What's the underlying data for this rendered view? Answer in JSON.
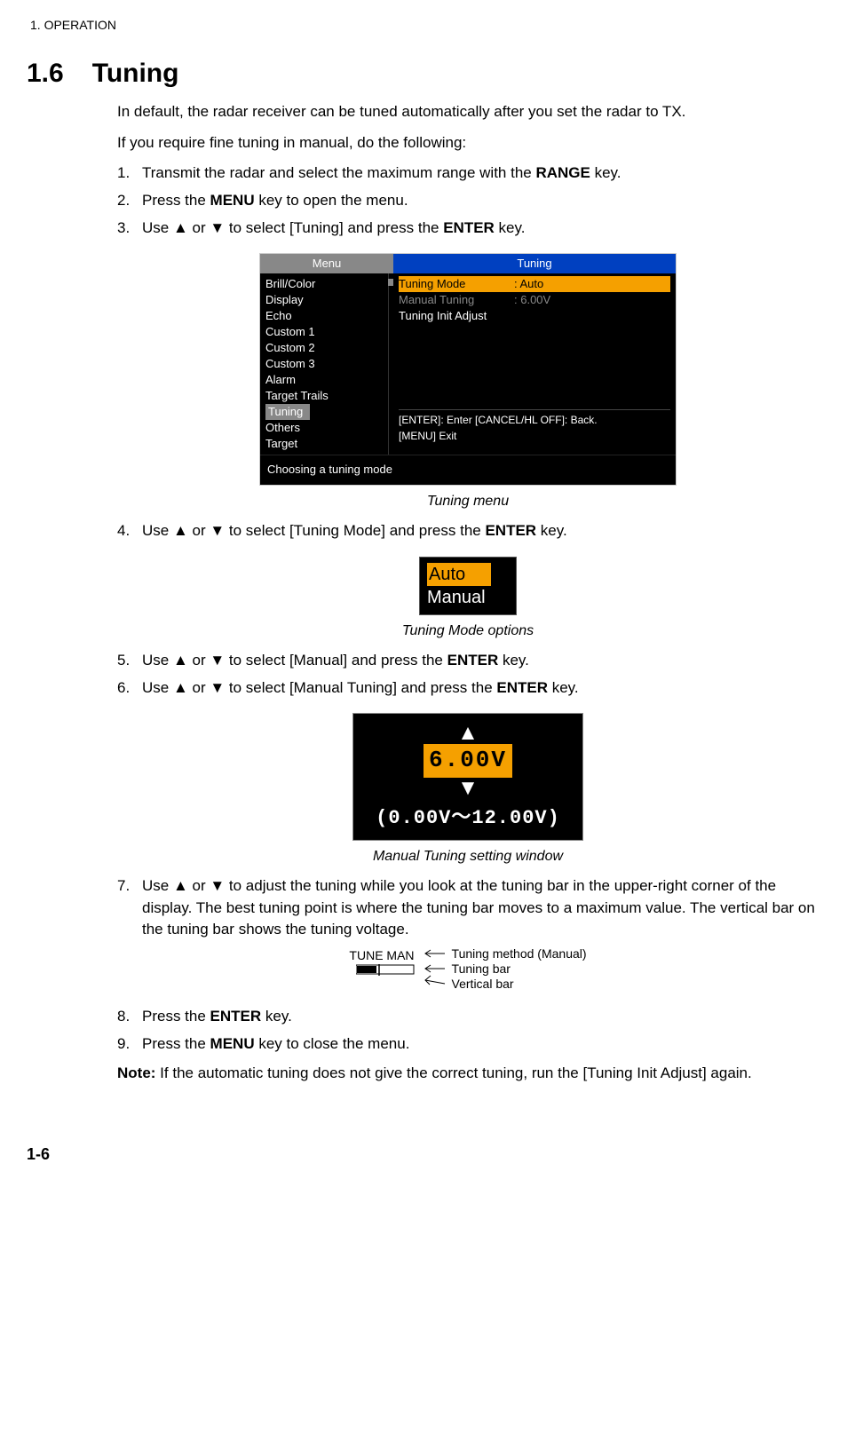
{
  "header": "1.  OPERATION",
  "section": {
    "number": "1.6",
    "title": "Tuning"
  },
  "intro1": "In default, the radar receiver can be tuned automatically after you set the radar to TX.",
  "intro2": "If you require fine tuning in manual, do the following:",
  "steps": {
    "s1": {
      "n": "1.",
      "pre": "Transmit the radar and select the maximum range with the ",
      "kw": "RANGE",
      "post": " key."
    },
    "s2": {
      "n": "2.",
      "pre": "Press the ",
      "kw": "MENU",
      "post": " key to open the menu."
    },
    "s3": {
      "n": "3.",
      "pre": "Use ",
      "t1": "▲",
      "mid": " or ",
      "t2": "▼",
      "post1": " to select [Tuning] and press the ",
      "kw": "ENTER",
      "post2": " key."
    },
    "s4": {
      "n": "4.",
      "pre": "Use ",
      "t1": "▲",
      "mid": " or ",
      "t2": "▼",
      "post1": " to select [Tuning Mode] and press the ",
      "kw": "ENTER",
      "post2": " key."
    },
    "s5": {
      "n": "5.",
      "pre": "Use ",
      "t1": "▲",
      "mid": " or ",
      "t2": "▼",
      "post1": " to select [Manual] and press the ",
      "kw": "ENTER",
      "post2": " key."
    },
    "s6": {
      "n": "6.",
      "pre": "Use ",
      "t1": "▲",
      "mid": " or ",
      "t2": "▼",
      "post1": " to select [Manual Tuning] and press the ",
      "kw": "ENTER",
      "post2": " key."
    },
    "s7": {
      "n": "7.",
      "pre": "Use ",
      "t1": "▲",
      "mid": " or ",
      "t2": "▼",
      "post": " to adjust the tuning while you look at the tuning bar in the upper-right corner of the display. The best tuning point is where the tuning bar moves to a maximum value. The vertical bar on the tuning bar shows the tuning voltage."
    },
    "s8": {
      "n": "8.",
      "pre": "Press the ",
      "kw": "ENTER",
      "post": " key."
    },
    "s9": {
      "n": "9.",
      "pre": "Press the ",
      "kw": "MENU",
      "post": " key to close the menu."
    }
  },
  "tuning_menu": {
    "left_header": "Menu",
    "right_header": "Tuning",
    "left_items": [
      "Brill/Color",
      "Display",
      "Echo",
      "Custom 1",
      "Custom 2",
      "Custom 3",
      "Alarm",
      "Target Trails",
      "Tuning",
      "Others",
      "Target"
    ],
    "selected_index": 8,
    "right_rows": [
      {
        "label": "Tuning Mode",
        "value": ": Auto",
        "highlight": true
      },
      {
        "label": "Manual Tuning",
        "value": ": 6.00V",
        "dim": true
      },
      {
        "label": "Tuning Init Adjust",
        "value": ""
      }
    ],
    "hint1": "[ENTER]: Enter [CANCEL/HL OFF]: Back.",
    "hint2": "[MENU] Exit",
    "footer": "Choosing a tuning mode",
    "colors": {
      "menu_header_bg": "#888888",
      "tuning_header_bg": "#0040c0",
      "highlight_bg": "#f5a000",
      "dim_text": "#888888",
      "bg": "#000000",
      "text": "#ffffff"
    }
  },
  "captions": {
    "c1": "Tuning menu",
    "c2": "Tuning Mode options",
    "c3": "Manual Tuning setting window"
  },
  "mode_options": {
    "opt1": "Auto",
    "opt2": "Manual"
  },
  "manual_window": {
    "up": "▲",
    "value": "6.00V",
    "down": "▼",
    "range": "(0.00V～12.00V)"
  },
  "tunebar": {
    "label": "TUNE MAN",
    "l1": "Tuning method (Manual)",
    "l2": "Tuning bar",
    "l3": "Vertical bar"
  },
  "note": {
    "label": "Note:",
    "text": " If the automatic tuning does not give the correct tuning, run the [Tuning Init Adjust] again."
  },
  "page_num": "1-6"
}
